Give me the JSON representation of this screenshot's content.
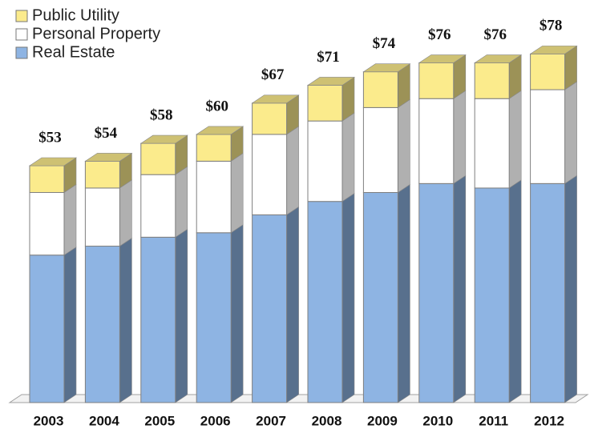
{
  "chart_data": {
    "type": "bar3d_stacked",
    "categories": [
      "2003",
      "2004",
      "2005",
      "2006",
      "2007",
      "2008",
      "2009",
      "2010",
      "2011",
      "2012"
    ],
    "series": [
      {
        "name": "Real Estate",
        "color": "#8eb4e3",
        "values": [
          33,
          35,
          37,
          38,
          42,
          45,
          47,
          49,
          48,
          49
        ]
      },
      {
        "name": "Personal Property",
        "color": "#ffffff",
        "values": [
          14,
          13,
          14,
          16,
          18,
          18,
          19,
          19,
          20,
          21
        ]
      },
      {
        "name": "Public Utility",
        "color": "#fbeb8c",
        "values": [
          6,
          6,
          7,
          6,
          7,
          8,
          8,
          8,
          8,
          8
        ]
      }
    ],
    "totals": [
      53,
      54,
      58,
      60,
      67,
      71,
      74,
      76,
      76,
      78
    ],
    "total_labels": [
      "$53",
      "$54",
      "$58",
      "$60",
      "$67",
      "$71",
      "$74",
      "$76",
      "$76",
      "$78"
    ],
    "legend": "top-left"
  }
}
